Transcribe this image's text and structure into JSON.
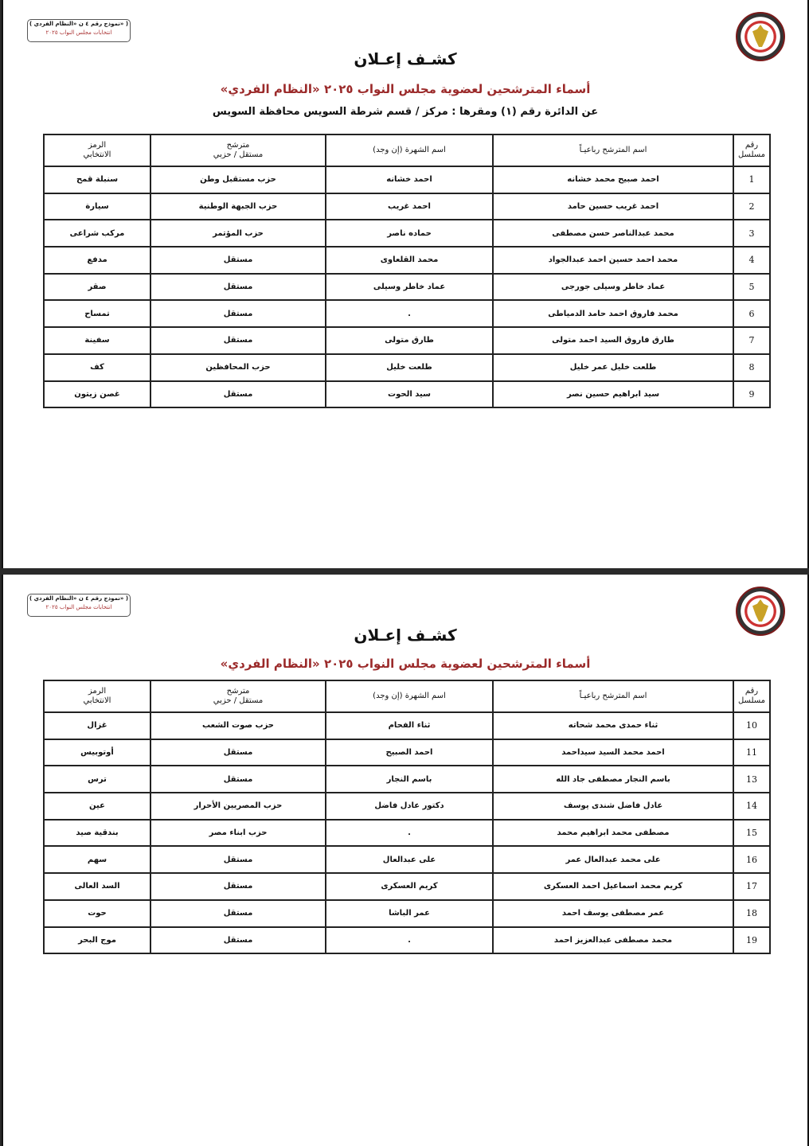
{
  "stamp": {
    "line1": "( نموذج رقم ٤ ن «النظام الفردي» )",
    "line2": "انتخابات مجلس النواب ٢٠٢٥"
  },
  "title": "كشـف إعـلان",
  "subtitle": "أسماء المترشحين لعضوية مجلس النواب ٢٠٢٥ «النظام الفردي»",
  "district": "عن الدائرة رقم (١) ومقرها : مركز / قسم شرطة السويس محافظة السويس",
  "columns": [
    "رقم مسلسل",
    "اسم المترشح رباعيـاً",
    "اسم الشهرة (إن وجد)",
    "مترشح مستقل / حزبي",
    "الرمز الانتخابي"
  ],
  "columns_split": [
    [
      "رقم",
      "مسلسل"
    ],
    [
      "اسم المترشح رباعيـاً",
      ""
    ],
    [
      "اسم الشهرة (إن وجد)",
      ""
    ],
    [
      "مترشح",
      "مستقل / حزبي"
    ],
    [
      "الرمز",
      "الانتخابي"
    ]
  ],
  "page1_rows": [
    [
      "1",
      "احمد صبيح محمد خشانه",
      "احمد خشانه",
      "حزب مستقبل وطن",
      "سنبلة قمح"
    ],
    [
      "2",
      "احمد غريب حسين حامد",
      "احمد غريب",
      "حزب الجبهة الوطنية",
      "سيارة"
    ],
    [
      "3",
      "محمد عبدالناصر حسن مصطفى",
      "حماده ناصر",
      "حزب المؤتمر",
      "مركب شراعى"
    ],
    [
      "4",
      "محمد احمد حسين احمد عبدالجواد",
      "محمد القلعاوى",
      "مستقل",
      "مدفع"
    ],
    [
      "5",
      "عماد خاطر وسيلى جورجى",
      "عماد خاطر وسيلى",
      "مستقل",
      "صقر"
    ],
    [
      "6",
      "محمد فاروق احمد حامد الدمياطى",
      ".",
      "مستقل",
      "تمساح"
    ],
    [
      "7",
      "طارق فاروق السيد احمد متولى",
      "طارق متولى",
      "مستقل",
      "سفينة"
    ],
    [
      "8",
      "طلعت خليل عمر خليل",
      "طلعت خليل",
      "حزب المحافظين",
      "كف"
    ],
    [
      "9",
      "سيد ابراهيم حسين نصر",
      "سيد الحوت",
      "مستقل",
      "غصن زيتون"
    ]
  ],
  "page2_rows": [
    [
      "10",
      "ثناء حمدى محمد شحاته",
      "ثناء الفحام",
      "حزب صوت الشعب",
      "غزال"
    ],
    [
      "11",
      "احمد محمد السيد سيداحمد",
      "احمد الصبيح",
      "مستقل",
      "أوتوبيس"
    ],
    [
      "13",
      "باسم النجار مصطفى جاد الله",
      "باسم النجار",
      "مستقل",
      "ترس"
    ],
    [
      "14",
      "عادل فاضل شندى يوسف",
      "دكتور عادل فاضل",
      "حزب المصريين الأحرار",
      "عين"
    ],
    [
      "15",
      "مصطفى محمد ابراهيم محمد",
      ".",
      "حزب ابناء مصر",
      "بندقية صيد"
    ],
    [
      "16",
      "على محمد عبدالعال عمر",
      "على عبدالعال",
      "مستقل",
      "سهم"
    ],
    [
      "17",
      "كريم محمد اسماعيل احمد العسكرى",
      "كريم العسكرى",
      "مستقل",
      "السد العالى"
    ],
    [
      "18",
      "عمر مصطفى يوسف احمد",
      "عمر الباشا",
      "مستقل",
      "حوت"
    ],
    [
      "19",
      "محمد مصطفى عبدالعزيز احمد",
      ".",
      "مستقل",
      "موج البحر"
    ]
  ],
  "colors": {
    "subtitle": "#9b2a2a",
    "border": "#222222"
  }
}
